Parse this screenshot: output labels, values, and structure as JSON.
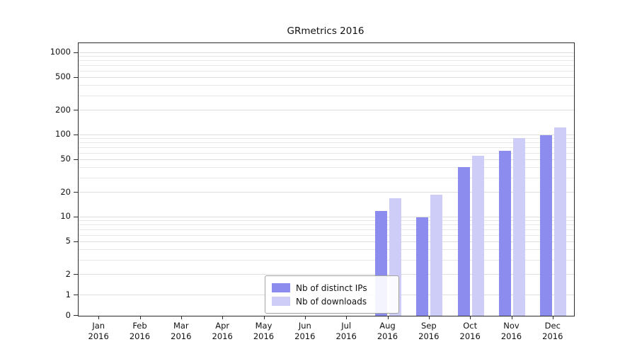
{
  "title": "GRmetrics 2016",
  "chart_data": {
    "type": "bar",
    "title": "GRmetrics 2016",
    "categories": [
      "Jan 2016",
      "Feb 2016",
      "Mar 2016",
      "Apr 2016",
      "May 2016",
      "Jun 2016",
      "Jul 2016",
      "Aug 2016",
      "Sep 2016",
      "Oct 2016",
      "Nov 2016",
      "Dec 2016"
    ],
    "x_tick_months": [
      "Jan",
      "Feb",
      "Mar",
      "Apr",
      "May",
      "Jun",
      "Jul",
      "Aug",
      "Sep",
      "Oct",
      "Nov",
      "Dec"
    ],
    "x_tick_year": "2016",
    "series": [
      {
        "name": "Nb of distinct IPs",
        "color": "#8c8cee",
        "values": [
          0,
          0,
          0,
          0,
          0,
          0,
          0,
          12,
          10,
          41,
          65,
          100
        ]
      },
      {
        "name": "Nb of downloads",
        "color": "#cdcdf8",
        "values": [
          0,
          0,
          0,
          0,
          0,
          0,
          0,
          17,
          19,
          56,
          92,
          125
        ]
      }
    ],
    "yscale": "symlog",
    "ylim": [
      0,
      1500
    ],
    "yticks": [
      0,
      1,
      2,
      5,
      10,
      20,
      50,
      100,
      200,
      500,
      1000
    ],
    "grid": true,
    "legend_position": "lower center"
  },
  "legend": {
    "items": [
      {
        "label": "Nb of distinct IPs",
        "color": "#8c8cee"
      },
      {
        "label": "Nb of downloads",
        "color": "#cdcdf8"
      }
    ]
  }
}
